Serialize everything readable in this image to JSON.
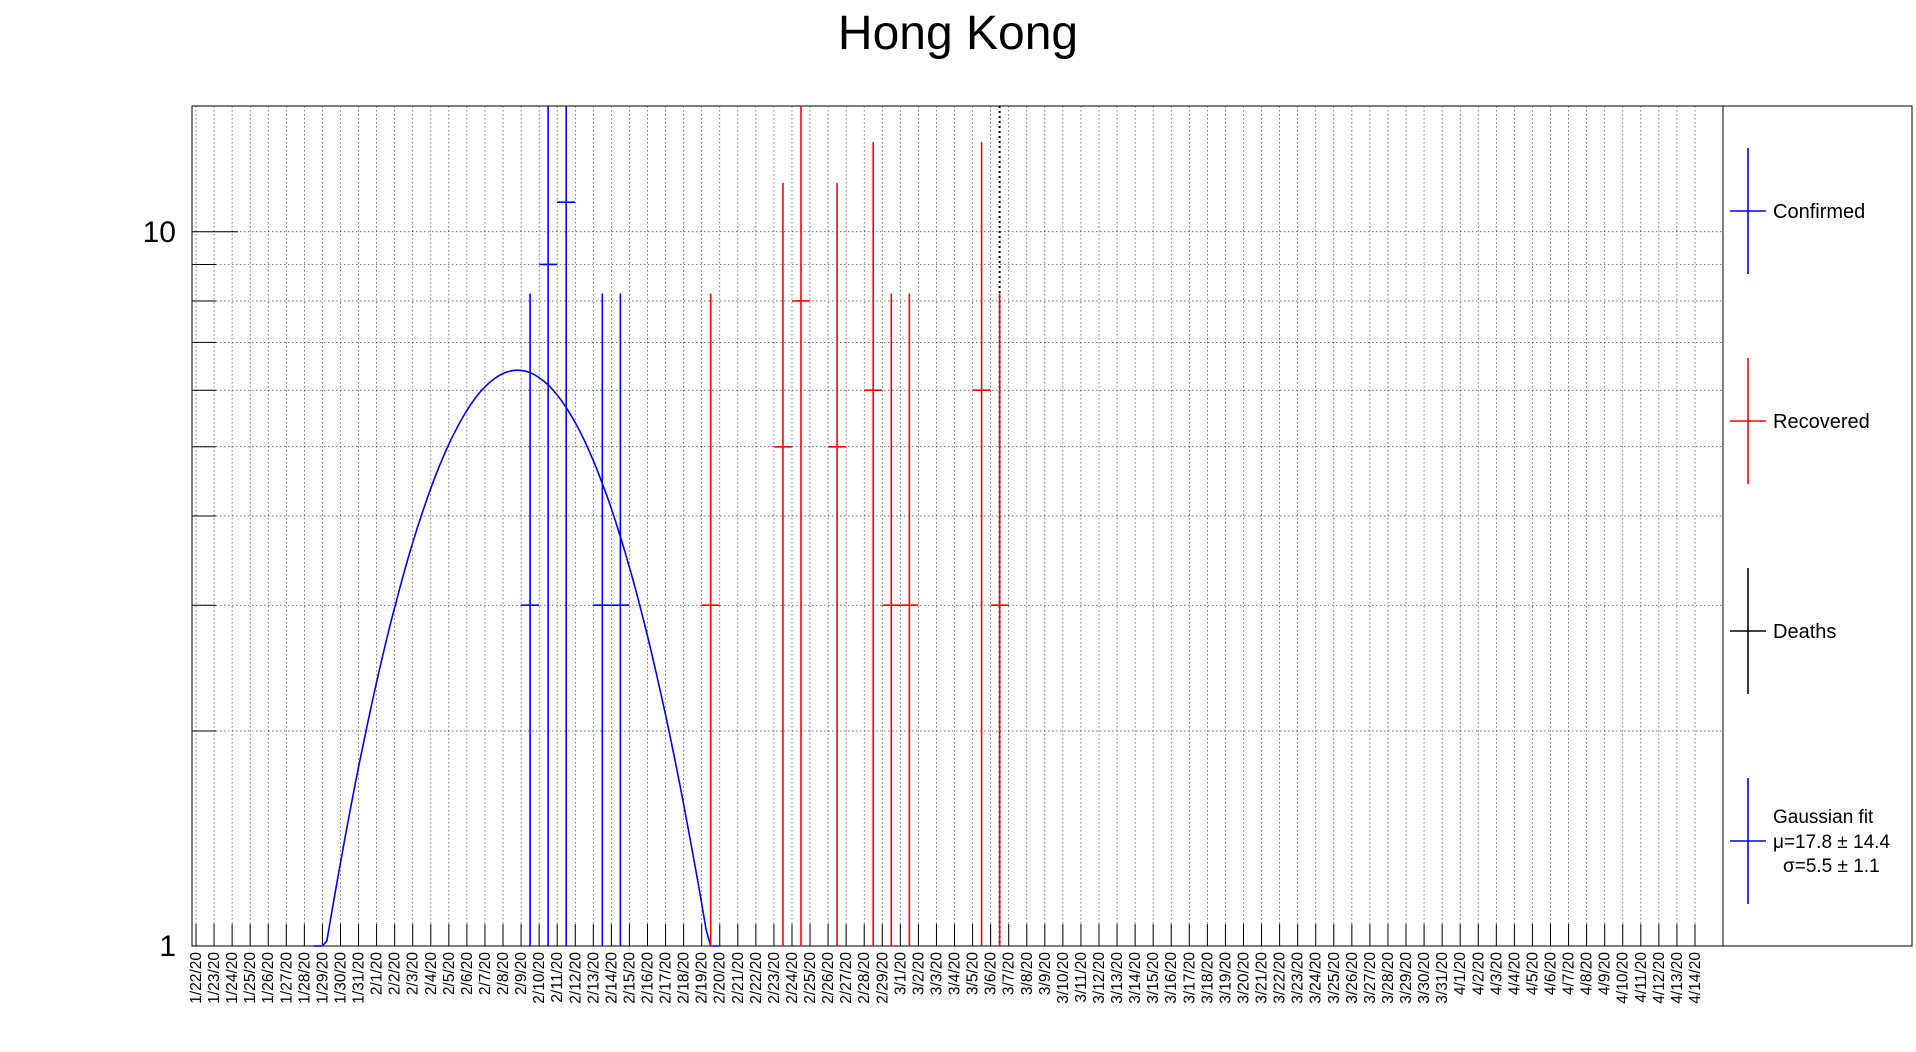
{
  "chart_data": {
    "type": "scatter",
    "title": "Hong Kong",
    "xlabel": "",
    "ylabel": "",
    "y_scale": "log",
    "ylim": [
      1,
      15
    ],
    "y_tick_labels": [
      "1",
      "10"
    ],
    "grid": true,
    "legend_position": "right",
    "x_tick_labels": [
      "1/22/20",
      "1/23/20",
      "1/24/20",
      "1/25/20",
      "1/26/20",
      "1/27/20",
      "1/28/20",
      "1/29/20",
      "1/30/20",
      "1/31/20",
      "2/1/20",
      "2/2/20",
      "2/3/20",
      "2/4/20",
      "2/5/20",
      "2/6/20",
      "2/7/20",
      "2/8/20",
      "2/9/20",
      "2/10/20",
      "2/11/20",
      "2/12/20",
      "2/13/20",
      "2/14/20",
      "2/15/20",
      "2/16/20",
      "2/17/20",
      "2/18/20",
      "2/19/20",
      "2/20/20",
      "2/21/20",
      "2/22/20",
      "2/23/20",
      "2/24/20",
      "2/25/20",
      "2/26/20",
      "2/27/20",
      "2/28/20",
      "2/29/20",
      "3/1/20",
      "3/2/20",
      "3/3/20",
      "3/4/20",
      "3/5/20",
      "3/6/20",
      "3/7/20",
      "3/8/20",
      "3/9/20",
      "3/10/20",
      "3/11/20",
      "3/12/20",
      "3/13/20",
      "3/14/20",
      "3/15/20",
      "3/16/20",
      "3/17/20",
      "3/18/20",
      "3/19/20",
      "3/20/20",
      "3/21/20",
      "3/22/20",
      "3/23/20",
      "3/24/20",
      "3/25/20",
      "3/26/20",
      "3/27/20",
      "3/28/20",
      "3/29/20",
      "3/30/20",
      "3/31/20",
      "4/1/20",
      "4/2/20",
      "4/3/20",
      "4/4/20",
      "4/5/20",
      "4/6/20",
      "4/7/20",
      "4/8/20",
      "4/9/20",
      "4/10/20",
      "4/11/20",
      "4/12/20",
      "4/13/20",
      "4/14/20"
    ],
    "vertical_marker_date": "3/6/20",
    "series": [
      {
        "name": "Confirmed",
        "color": "#0000ff",
        "points": [
          {
            "x": "2/9/20",
            "y": 3
          },
          {
            "x": "2/10/20",
            "y": 9
          },
          {
            "x": "2/11/20",
            "y": 11
          },
          {
            "x": "2/13/20",
            "y": 3
          },
          {
            "x": "2/14/20",
            "y": 3
          }
        ]
      },
      {
        "name": "Recovered",
        "color": "#ff0000",
        "points": [
          {
            "x": "2/19/20",
            "y": 3
          },
          {
            "x": "2/23/20",
            "y": 5
          },
          {
            "x": "2/24/20",
            "y": 8
          },
          {
            "x": "2/26/20",
            "y": 5
          },
          {
            "x": "2/28/20",
            "y": 6
          },
          {
            "x": "2/29/20",
            "y": 3
          },
          {
            "x": "3/1/20",
            "y": 3
          },
          {
            "x": "3/5/20",
            "y": 6
          },
          {
            "x": "3/6/20",
            "y": 3
          }
        ]
      },
      {
        "name": "Deaths",
        "color": "#000000",
        "points": []
      }
    ],
    "fit": {
      "name": "Gaussian fit",
      "color": "#0000ff",
      "mu_label": "μ=17.8 ± 14.4",
      "sigma_label": "σ=5.5 ± 1.1",
      "mu_days_after_1_22_20": 17.8,
      "sigma_days": 5.5,
      "peak": 6.4,
      "start_date": "1/29/20",
      "end_date": "2/20/20"
    },
    "legend": [
      "Confirmed",
      "Recovered",
      "Deaths",
      "Gaussian fit"
    ]
  }
}
